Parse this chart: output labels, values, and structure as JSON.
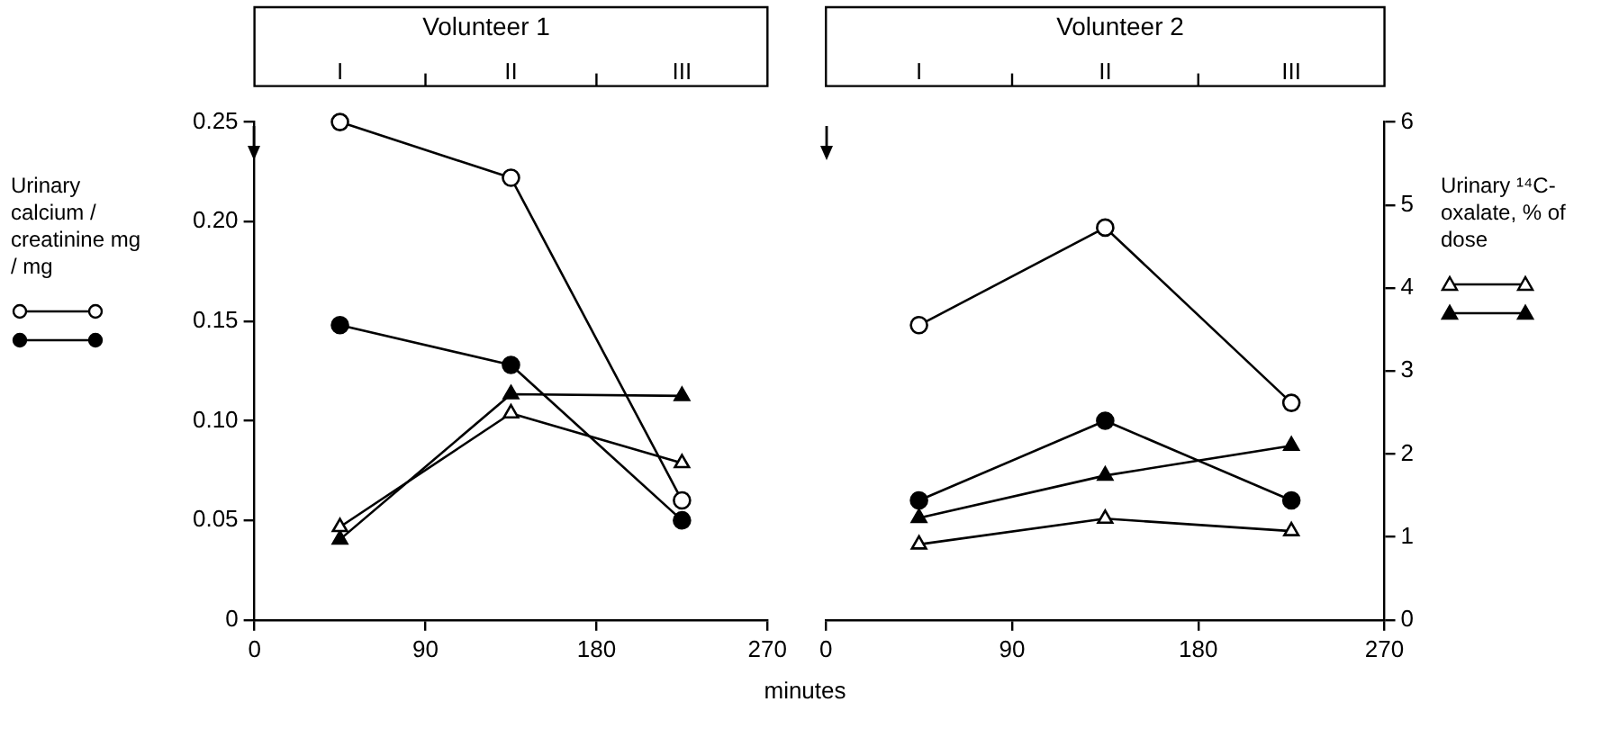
{
  "chart_data": [
    {
      "type": "line",
      "title": "Volunteer 1",
      "xlabel": "minutes",
      "ylabel": "Urinary calcium / creatinine mg / mg",
      "x": [
        45,
        135,
        225
      ],
      "xlim": [
        0,
        270
      ],
      "xticks": [
        0,
        90,
        180,
        270
      ],
      "ylim": [
        0,
        0.25
      ],
      "yticks": [
        0,
        0.05,
        {
          "value": 0.1,
          "label": "0.10"
        },
        0.15,
        {
          "value": 0.2,
          "label": "0.20"
        },
        0.25
      ],
      "y2lim": [
        0,
        6
      ],
      "annotations": [
        "I",
        "II",
        "III"
      ],
      "series": [
        {
          "color": "#000000",
          "marker": "circle",
          "values": [
            0.25,
            0.222,
            0.06
          ]
        },
        {
          "color": "#000000",
          "marker": "circle",
          "values": [
            0.148,
            0.128,
            0.05
          ]
        },
        {
          "color": "#000000",
          "marker": "triangle",
          "axis": "y2",
          "values": [
            1.12,
            2.49,
            1.89
          ]
        },
        {
          "color": "#000000",
          "marker": "triangle",
          "axis": "y2",
          "values": [
            0.97,
            2.72,
            2.7
          ]
        }
      ]
    },
    {
      "type": "line",
      "title": "Volunteer 2",
      "y2label": "Urinary ¹⁴C-oxalate, % of dose",
      "x": [
        45,
        135,
        225
      ],
      "xlim": [
        0,
        270
      ],
      "xticks": [
        0,
        90,
        180,
        270
      ],
      "ylim": [
        0,
        0.25
      ],
      "y2lim": [
        0,
        6
      ],
      "y2ticks": [
        0,
        1,
        2,
        3,
        4,
        5,
        6
      ],
      "annotations": [
        "I",
        "II",
        "III"
      ],
      "series": [
        {
          "color": "#000000",
          "marker": "circle",
          "values": [
            0.148,
            0.197,
            0.109
          ]
        },
        {
          "color": "#000000",
          "marker": "circle",
          "values": [
            0.06,
            0.1,
            0.06
          ]
        },
        {
          "color": "#000000",
          "marker": "triangle",
          "axis": "y2",
          "values": [
            0.91,
            1.22,
            1.07
          ]
        },
        {
          "color": "#000000",
          "marker": "triangle",
          "axis": "y2",
          "values": [
            1.23,
            1.74,
            2.1
          ]
        }
      ]
    }
  ]
}
